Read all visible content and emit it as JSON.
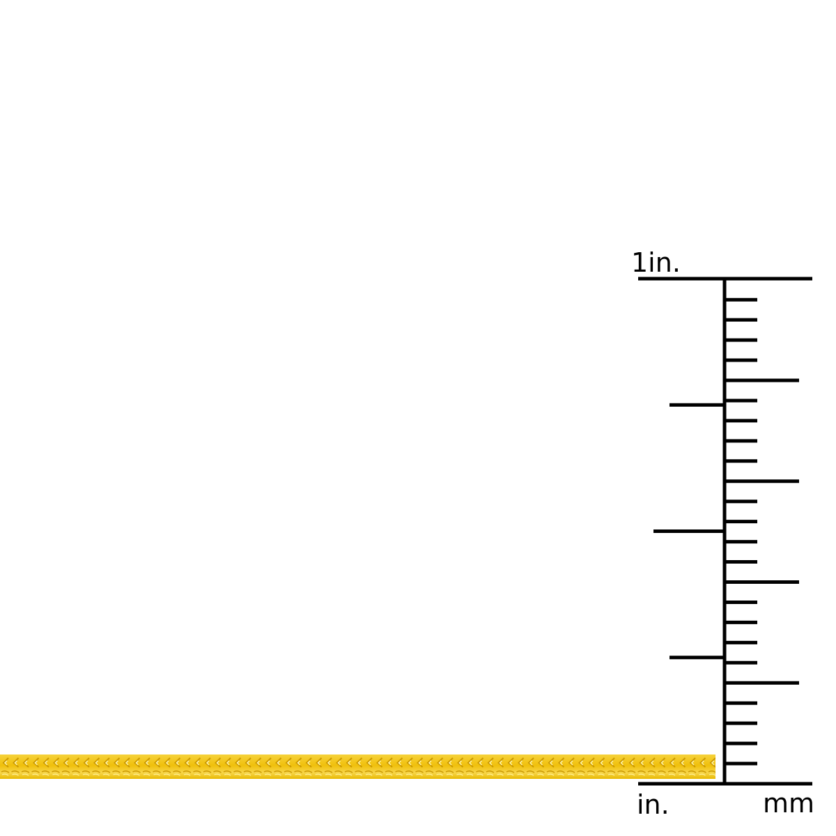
{
  "product": {
    "image": "gold-franco-chain",
    "chain_color": "#f2c40a"
  },
  "ruler": {
    "top_label": "1in.",
    "bottom_left_label": "in.",
    "bottom_right_label": "mm",
    "inch_ticks": [
      0.25,
      0.5,
      0.75
    ],
    "mm_tick_count": 25,
    "mm_long_every": 5
  }
}
